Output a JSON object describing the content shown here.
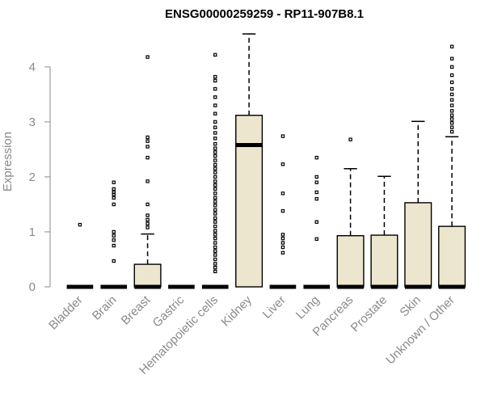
{
  "chart_data": {
    "type": "box",
    "title": "ENSG00000259259 - RP11-907B8.1",
    "ylabel": "Expression",
    "xlabel": "",
    "ylim": [
      0,
      4.6
    ],
    "yticks": [
      0,
      1,
      2,
      3,
      4
    ],
    "grid": false,
    "colors": {
      "box_fill": "#ede6cf",
      "stroke": "#000000",
      "axis": "#8a8a8a"
    },
    "categories": [
      "Bladder",
      "Brain",
      "Breast",
      "Gastric",
      "Hematopoietic cells",
      "Kidney",
      "Liver",
      "Lung",
      "Pancreas",
      "Prostate",
      "Skin",
      "Unknown / Other"
    ],
    "boxes": [
      {
        "q1": 0,
        "median": 0,
        "q3": 0,
        "whisker_low": 0,
        "whisker_high": 0,
        "outliers": [
          1.13
        ]
      },
      {
        "q1": 0,
        "median": 0,
        "q3": 0,
        "whisker_low": 0,
        "whisker_high": 0,
        "outliers": [
          0.47,
          0.75,
          0.85,
          0.93,
          1.0,
          1.5,
          1.62,
          1.68,
          1.72,
          1.78,
          1.9
        ]
      },
      {
        "q1": 0,
        "median": 0,
        "q3": 0.41,
        "whisker_low": 0,
        "whisker_high": 0.96,
        "outliers": [
          1.08,
          1.15,
          1.22,
          1.3,
          1.5,
          1.92,
          2.35,
          2.55,
          2.65,
          2.72,
          4.18
        ]
      },
      {
        "q1": 0,
        "median": 0,
        "q3": 0,
        "whisker_low": 0,
        "whisker_high": 0,
        "outliers": []
      },
      {
        "q1": 0,
        "median": 0,
        "q3": 0,
        "whisker_low": 0,
        "whisker_high": 0,
        "outliers": [
          0.28,
          0.35,
          0.42,
          0.5,
          0.58,
          0.65,
          0.72,
          0.8,
          0.88,
          0.95,
          1.02,
          1.1,
          1.18,
          1.25,
          1.33,
          1.4,
          1.48,
          1.55,
          1.62,
          1.7,
          1.78,
          1.85,
          1.92,
          2.0,
          2.08,
          2.15,
          2.22,
          2.3,
          2.38,
          2.45,
          2.52,
          2.6,
          2.7,
          2.8,
          2.9,
          3.0,
          3.15,
          3.3,
          3.45,
          3.6,
          3.75,
          3.82,
          4.22
        ]
      },
      {
        "q1": 0,
        "median": 2.58,
        "q3": 3.12,
        "whisker_low": 0,
        "whisker_high": 4.6,
        "outliers": []
      },
      {
        "q1": 0,
        "median": 0,
        "q3": 0,
        "whisker_low": 0,
        "whisker_high": 0,
        "outliers": [
          0.62,
          0.72,
          0.8,
          0.88,
          0.95,
          1.38,
          1.7,
          2.23,
          2.74
        ]
      },
      {
        "q1": 0,
        "median": 0,
        "q3": 0,
        "whisker_low": 0,
        "whisker_high": 0,
        "outliers": [
          0.87,
          1.18,
          1.6,
          1.72,
          1.9,
          2.0,
          2.35
        ]
      },
      {
        "q1": 0,
        "median": 0,
        "q3": 0.93,
        "whisker_low": 0,
        "whisker_high": 2.15,
        "outliers": [
          2.68
        ]
      },
      {
        "q1": 0,
        "median": 0,
        "q3": 0.94,
        "whisker_low": 0,
        "whisker_high": 2.01,
        "outliers": []
      },
      {
        "q1": 0,
        "median": 0,
        "q3": 1.53,
        "whisker_low": 0,
        "whisker_high": 3.01,
        "outliers": []
      },
      {
        "q1": 0,
        "median": 0,
        "q3": 1.1,
        "whisker_low": 0,
        "whisker_high": 2.73,
        "outliers": [
          2.82,
          2.9,
          2.98,
          3.05,
          3.12,
          3.2,
          3.3,
          3.4,
          3.5,
          3.6,
          3.72,
          3.85,
          4.0,
          4.15,
          4.37
        ]
      }
    ]
  }
}
